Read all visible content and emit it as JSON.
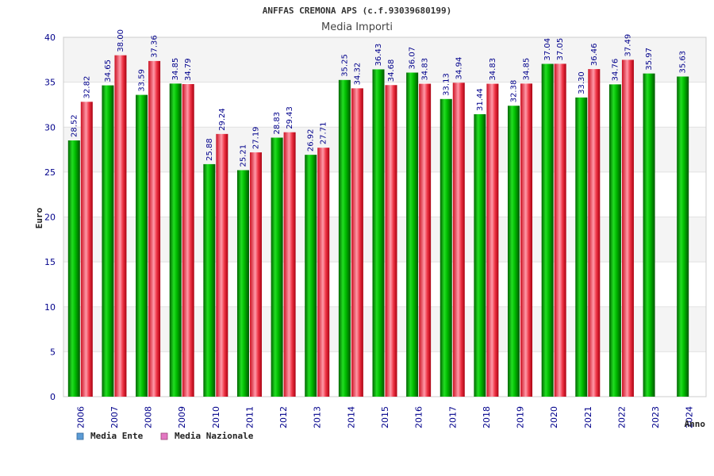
{
  "chart_data": {
    "type": "bar",
    "title": "ANFFAS CREMONA APS (c.f.93039680199)",
    "subtitle": "Media Importi",
    "xlabel": "Anno",
    "ylabel": "Euro",
    "ylim": [
      0,
      40
    ],
    "yticks": [
      0,
      5,
      10,
      15,
      20,
      25,
      30,
      35,
      40
    ],
    "grid": true,
    "legend_position": "bottom-left",
    "categories": [
      "2006",
      "2007",
      "2008",
      "2009",
      "2010",
      "2011",
      "2012",
      "2013",
      "2014",
      "2015",
      "2016",
      "2017",
      "2018",
      "2019",
      "2020",
      "2021",
      "2022",
      "2023",
      "2024"
    ],
    "series": [
      {
        "name": "Media Ente",
        "color": "#00aa00",
        "legend_color": "#5b9bd5",
        "values": [
          28.52,
          34.65,
          33.59,
          34.85,
          25.88,
          25.21,
          28.83,
          26.92,
          35.25,
          36.43,
          36.07,
          33.13,
          31.44,
          32.38,
          37.04,
          33.3,
          34.76,
          35.97,
          35.63
        ],
        "labels": [
          "28.52",
          "34.65",
          "33.59",
          "34.85",
          "25.88",
          "25.21",
          "28.83",
          "26.92",
          "35.25",
          "36.43",
          "36.07",
          "33.13",
          "31.44",
          "32.38",
          "37.04",
          "33.30",
          "34.76",
          "35.97",
          "35.63"
        ]
      },
      {
        "name": "Media Nazionale",
        "color": "#ee2233",
        "legend_color": "#e377c2",
        "values": [
          32.82,
          38.0,
          37.36,
          34.79,
          29.24,
          27.19,
          29.43,
          27.71,
          34.32,
          34.68,
          34.83,
          34.94,
          34.83,
          34.85,
          37.05,
          36.46,
          37.49,
          null,
          null
        ],
        "labels": [
          "32.82",
          "38.00",
          "37.36",
          "34.79",
          "29.24",
          "27.19",
          "29.43",
          "27.71",
          "34.32",
          "34.68",
          "34.83",
          "34.94",
          "34.83",
          "34.85",
          "37.05",
          "36.46",
          "37.49",
          null,
          null
        ]
      }
    ]
  }
}
